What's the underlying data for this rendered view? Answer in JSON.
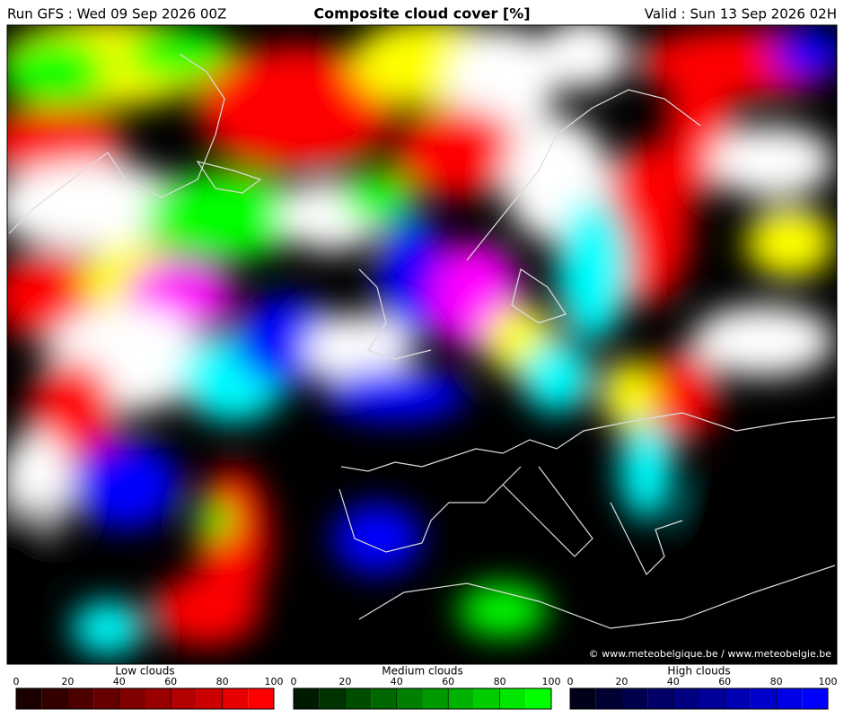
{
  "header": {
    "run": "Run GFS : Wed 09 Sep 2026 00Z",
    "title": "Composite cloud cover [%]",
    "valid": "Valid : Sun 13 Sep 2026 02H"
  },
  "credit": "© www.meteobelgique.be / www.meteobelgie.be",
  "legends": [
    {
      "title": "Low clouds",
      "ticks": [
        0,
        20,
        40,
        60,
        80,
        100
      ],
      "colors": [
        "#1a0000",
        "#330000",
        "#4d0000",
        "#660000",
        "#800000",
        "#990000",
        "#b30000",
        "#cc0000",
        "#e60000",
        "#ff0000"
      ]
    },
    {
      "title": "Medium clouds",
      "ticks": [
        0,
        20,
        40,
        60,
        80,
        100
      ],
      "colors": [
        "#001a00",
        "#003300",
        "#004d00",
        "#006600",
        "#008000",
        "#009900",
        "#00b300",
        "#00cc00",
        "#00e600",
        "#00ff00"
      ]
    },
    {
      "title": "High clouds",
      "ticks": [
        0,
        20,
        40,
        60,
        80,
        100
      ],
      "colors": [
        "#00001a",
        "#000033",
        "#00004d",
        "#000066",
        "#000080",
        "#000099",
        "#0000b3",
        "#0000cc",
        "#0000e6",
        "#0000ff"
      ]
    }
  ]
}
